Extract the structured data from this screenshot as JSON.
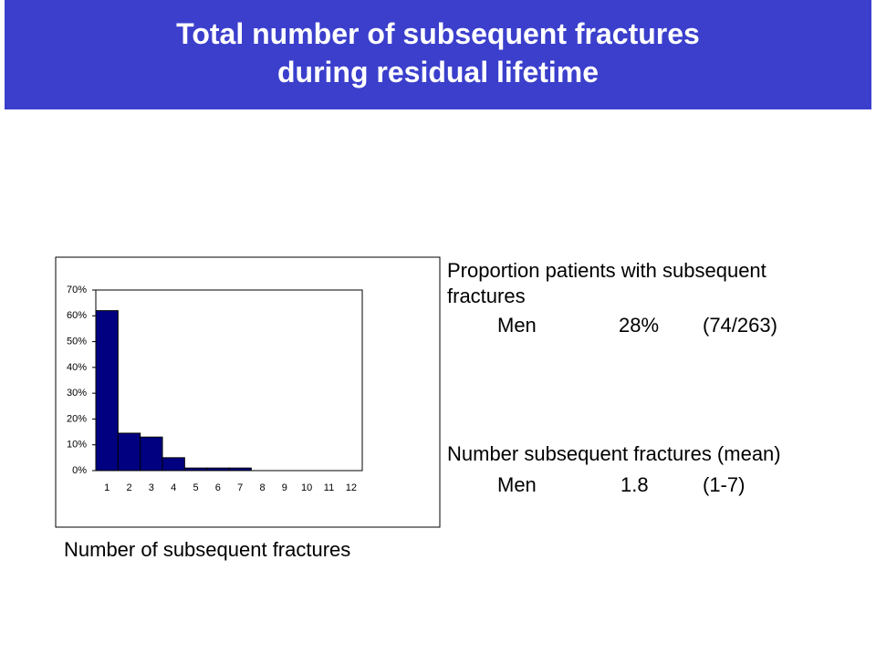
{
  "slide": {
    "title_lines": [
      "Total number of subsequent fractures",
      "during residual lifetime"
    ],
    "stats": [
      {
        "heading": "Proportion patients with subsequent fractures",
        "row": [
          "Men",
          "28%",
          "(74/263)"
        ]
      },
      {
        "heading": "Number subsequent fractures (mean)",
        "row": [
          "Men",
          "1.8",
          "(1-7)"
        ]
      }
    ]
  },
  "chart_data": {
    "type": "bar",
    "xlabel": "Number of subsequent fractures",
    "categories": [
      "1",
      "2",
      "3",
      "4",
      "5",
      "6",
      "7",
      "8",
      "9",
      "10",
      "11",
      "12"
    ],
    "values": [
      62,
      14.5,
      13,
      5,
      1,
      1,
      1,
      0,
      0,
      0,
      0,
      0
    ],
    "color": "#000080",
    "ylim": [
      0,
      70
    ],
    "yticks": [
      {
        "value": 0,
        "label": "0%"
      },
      {
        "value": 10,
        "label": "10%"
      },
      {
        "value": 20,
        "label": "20%"
      },
      {
        "value": 30,
        "label": "30%"
      },
      {
        "value": 40,
        "label": "40%"
      },
      {
        "value": 50,
        "label": "50%"
      },
      {
        "value": 60,
        "label": "60%"
      },
      {
        "value": 70,
        "label": "70%"
      }
    ],
    "grid": false
  }
}
